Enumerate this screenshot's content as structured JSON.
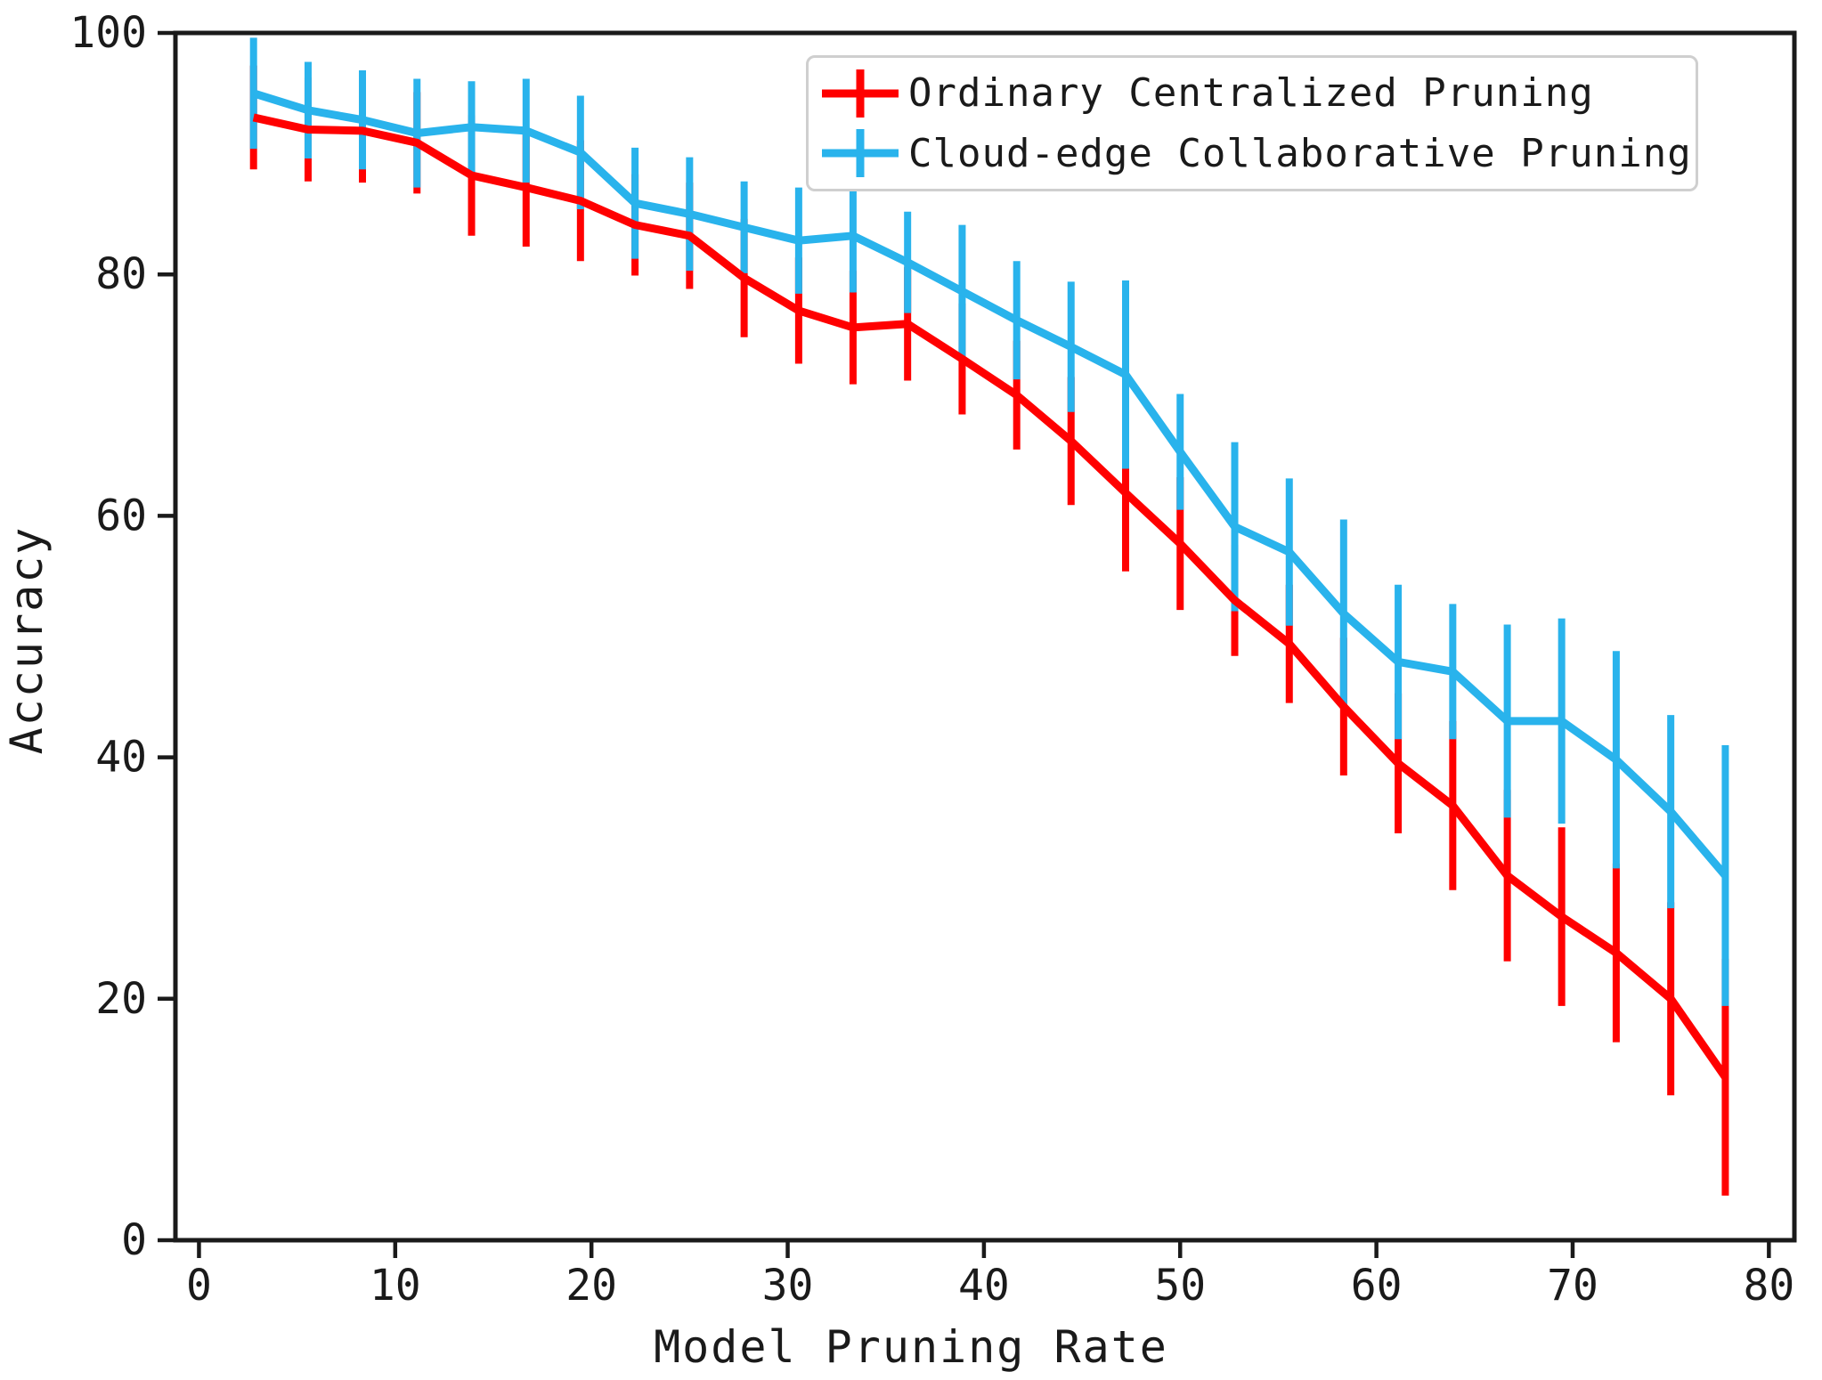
{
  "figure": {
    "background": "#ffffff",
    "text_color": "#1a1a1a",
    "spine_color": "#1a1a1a"
  },
  "chart_data": {
    "type": "line",
    "title": "",
    "xlabel": "Model Pruning Rate",
    "ylabel": "Accuracy",
    "xlim": [
      -1.2,
      81.3
    ],
    "ylim": [
      0,
      100
    ],
    "x_ticks": [
      0,
      10,
      20,
      30,
      40,
      50,
      60,
      70,
      80
    ],
    "y_ticks": [
      0,
      20,
      40,
      60,
      80,
      100
    ],
    "grid": false,
    "legend_position": "upper right",
    "error_bars": true,
    "x": [
      2.78,
      5.56,
      8.33,
      11.11,
      13.89,
      16.67,
      19.44,
      22.22,
      25,
      27.78,
      30.56,
      33.33,
      36.11,
      38.89,
      41.67,
      44.44,
      47.22,
      50,
      52.78,
      55.56,
      58.33,
      61.11,
      63.89,
      66.67,
      69.44,
      72.22,
      75,
      77.78
    ],
    "series": [
      {
        "name": "Ordinary Centralized Pruning",
        "color": "#ff0000",
        "values": [
          93,
          92,
          91.9,
          90.9,
          88.2,
          87.2,
          86.1,
          84.1,
          83.2,
          79.7,
          77,
          75.6,
          75.9,
          73,
          70,
          66.2,
          61.9,
          57.7,
          53,
          49.4,
          44.2,
          39.5,
          36,
          30.2,
          26.8,
          23.8,
          20,
          13.5
        ],
        "errors": [
          4.3,
          4.3,
          4.3,
          4.2,
          5,
          4.9,
          5,
          4.2,
          4.4,
          4.9,
          4.4,
          4.7,
          4.7,
          4.6,
          4.5,
          5.3,
          6.5,
          5.5,
          4.6,
          4.9,
          5.7,
          5.8,
          7,
          7.1,
          7.4,
          7.4,
          8,
          9.8
        ]
      },
      {
        "name": "Cloud-edge Collaborative Pruning",
        "color": "#29b3ec",
        "values": [
          95,
          93.6,
          92.8,
          91.7,
          92.2,
          91.9,
          90.1,
          85.9,
          85,
          83.9,
          82.8,
          83.2,
          81,
          78.6,
          76.2,
          74,
          71.7,
          65.3,
          59.1,
          57,
          51.9,
          47.9,
          47.1,
          43,
          43,
          39.8,
          35.5,
          30.2
        ],
        "errors": [
          4.6,
          4,
          4.1,
          4.5,
          3.8,
          4.3,
          4.7,
          4.6,
          4.7,
          3.8,
          4.4,
          4.7,
          4.2,
          5.5,
          4.9,
          5.4,
          7.8,
          4.8,
          7,
          6.1,
          7.8,
          6.4,
          5.6,
          8,
          8.5,
          9,
          8,
          10.8
        ]
      }
    ]
  }
}
